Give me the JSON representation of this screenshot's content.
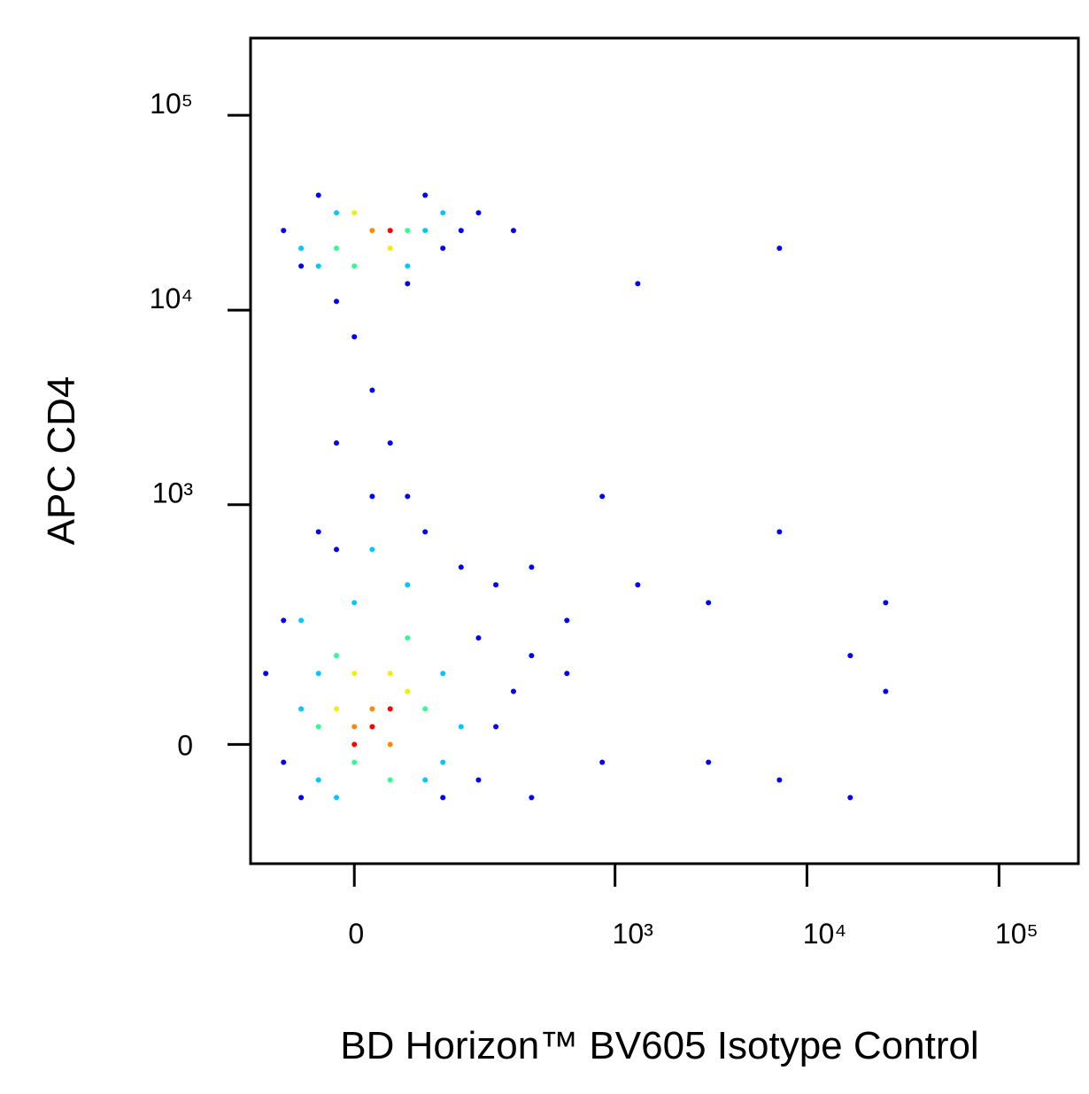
{
  "chart_data": {
    "type": "scatter",
    "x_label": "BD Horizon™ BV605 Isotype Control",
    "y_label": "APC CD4",
    "xscale": "biexponential",
    "yscale": "biexponential",
    "xlim": [
      -140,
      259000
    ],
    "ylim": [
      -227,
      249000
    ],
    "xticks": [
      0,
      {
        "value": 1000,
        "label": "10³"
      },
      {
        "value": 10000,
        "label": "10⁴"
      },
      {
        "value": 100000,
        "label": "10⁵"
      }
    ],
    "yticks": [
      0,
      {
        "value": 1000,
        "label": "10³"
      },
      {
        "value": 10000,
        "label": "10⁴"
      },
      {
        "value": 100000,
        "label": "10⁵"
      }
    ],
    "series": [
      {
        "color": "#0000ff",
        "x": [
          -84,
          -60,
          -39,
          84,
          112,
          146,
          185,
          290,
          -19,
          60,
          0,
          19,
          39,
          -19,
          60,
          -39,
          84,
          146,
          232,
          363,
          559,
          857,
          1314,
          3070,
          7190,
          16800,
          25700,
          3070,
          7190,
          16800,
          363,
          -84,
          -112,
          -84,
          -60,
          112,
          185,
          232,
          290,
          363,
          559,
          857,
          25700,
          1314,
          7190,
          19,
          -19,
          185
        ],
        "values": [
          25600,
          16830,
          38900,
          38900,
          20770,
          25600,
          31600,
          25600,
          11090,
          13670,
          7290,
          3880,
          2077,
          2077,
          1104,
          723,
          723,
          472,
          380,
          472,
          242,
          1104,
          380,
          304,
          723,
          148,
          304,
          -25,
          -51,
          -79,
          -79,
          242,
          111,
          -25,
          -79,
          -79,
          -51,
          25,
          79,
          148,
          111,
          -25,
          79,
          13670,
          20770,
          1104,
          585,
          191
        ]
      },
      {
        "color": "#00c8ff",
        "x": [
          -60,
          -39,
          84,
          112,
          60,
          -19,
          -60,
          -39,
          112,
          146,
          112,
          -39,
          0,
          60,
          19,
          -19,
          84,
          -60
        ],
        "values": [
          20770,
          16830,
          25600,
          31600,
          16830,
          31600,
          242,
          111,
          111,
          25,
          -25,
          -51,
          304,
          380,
          585,
          -79,
          -51,
          51
        ]
      },
      {
        "color": "#30ff90",
        "x": [
          -19,
          60,
          0,
          -39,
          -19,
          84,
          60,
          0,
          39
        ],
        "values": [
          20770,
          25600,
          16830,
          25,
          148,
          51,
          191,
          -25,
          -51
        ]
      },
      {
        "color": "#f0f000",
        "x": [
          0,
          39,
          -19,
          60,
          39,
          0
        ],
        "values": [
          31600,
          20770,
          51,
          79,
          111,
          111
        ]
      },
      {
        "color": "#ff8c00",
        "x": [
          19,
          19,
          39,
          0
        ],
        "values": [
          25600,
          51,
          0,
          25
        ]
      },
      {
        "color": "#ff0000",
        "x": [
          39,
          19,
          0,
          39
        ],
        "values": [
          25600,
          25,
          0,
          51
        ]
      }
    ]
  }
}
